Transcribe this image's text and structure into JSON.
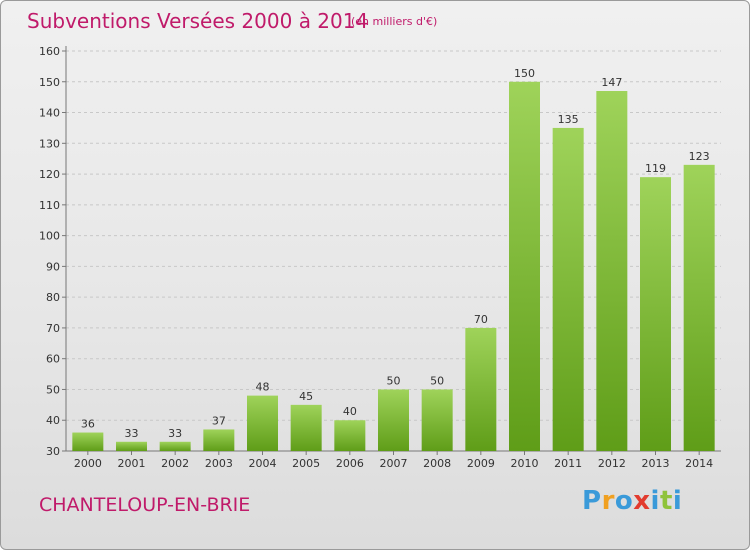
{
  "header": {
    "title": "Subventions Versées 2000 à 2014",
    "unit": "(en milliers d'€)"
  },
  "footer": {
    "city": "CHANTELOUP-EN-BRIE",
    "logo_letters": [
      {
        "char": "P",
        "color": "#3a9ad9"
      },
      {
        "char": "r",
        "color": "#f0a020"
      },
      {
        "char": "o",
        "color": "#3a9ad9"
      },
      {
        "char": "x",
        "color": "#e23b2e"
      },
      {
        "char": "i",
        "color": "#3a9ad9"
      },
      {
        "char": "t",
        "color": "#8fc33a"
      },
      {
        "char": "i",
        "color": "#3a9ad9"
      }
    ]
  },
  "colors": {
    "accent": "#c01a6a",
    "bar_light": "#9fd35a",
    "bar_dark": "#5f9d18"
  },
  "chart_data": {
    "type": "bar",
    "title": "Subventions Versées 2000 à 2014",
    "subtitle": "(en milliers d'€)",
    "xlabel": "",
    "ylabel": "",
    "categories": [
      "2000",
      "2001",
      "2002",
      "2003",
      "2004",
      "2005",
      "2006",
      "2007",
      "2008",
      "2009",
      "2010",
      "2011",
      "2012",
      "2013",
      "2014"
    ],
    "values": [
      36,
      33,
      33,
      37,
      48,
      45,
      40,
      50,
      50,
      70,
      150,
      135,
      147,
      119,
      123
    ],
    "ylim": [
      30,
      160
    ],
    "yticks": [
      30,
      40,
      50,
      60,
      70,
      80,
      90,
      100,
      110,
      120,
      130,
      140,
      150,
      160
    ],
    "grid": true,
    "data_labels": true
  }
}
